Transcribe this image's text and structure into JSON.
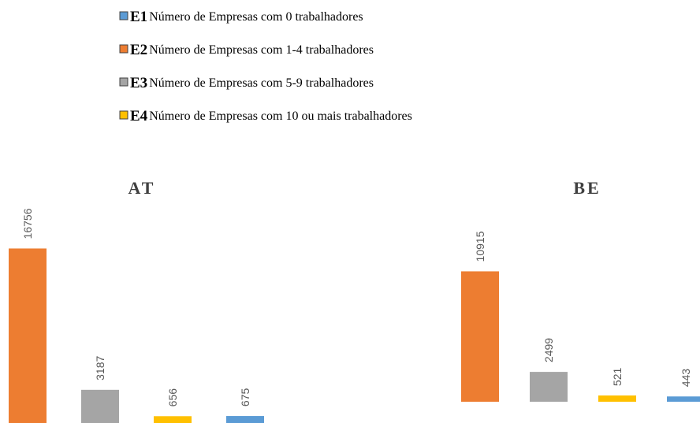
{
  "legend": {
    "items": [
      {
        "code": "E1",
        "label": "Número de Empresas com 0 trabalhadores",
        "color": "#5b9bd5"
      },
      {
        "code": "E2",
        "label": "Número de Empresas com 1-4 trabalhadores",
        "color": "#ed7d31"
      },
      {
        "code": "E3",
        "label": "Número de Empresas com 5-9 trabalhadores",
        "color": "#a5a5a5"
      },
      {
        "code": "E4",
        "label": "Número de Empresas com 10 ou mais trabalhadores",
        "color": "#ffc000"
      }
    ]
  },
  "chart_data": [
    {
      "type": "bar",
      "title": "AT",
      "values": [
        16756,
        3187,
        656,
        675
      ],
      "colors": [
        "#ed7d31",
        "#a5a5a5",
        "#ffc000",
        "#5b9bd5"
      ],
      "ylim": [
        0,
        18000
      ]
    },
    {
      "type": "bar",
      "title": "BE",
      "values": [
        10915,
        2499,
        521,
        443
      ],
      "colors": [
        "#ed7d31",
        "#a5a5a5",
        "#ffc000",
        "#5b9bd5"
      ],
      "ylim": [
        0,
        12000
      ]
    }
  ]
}
